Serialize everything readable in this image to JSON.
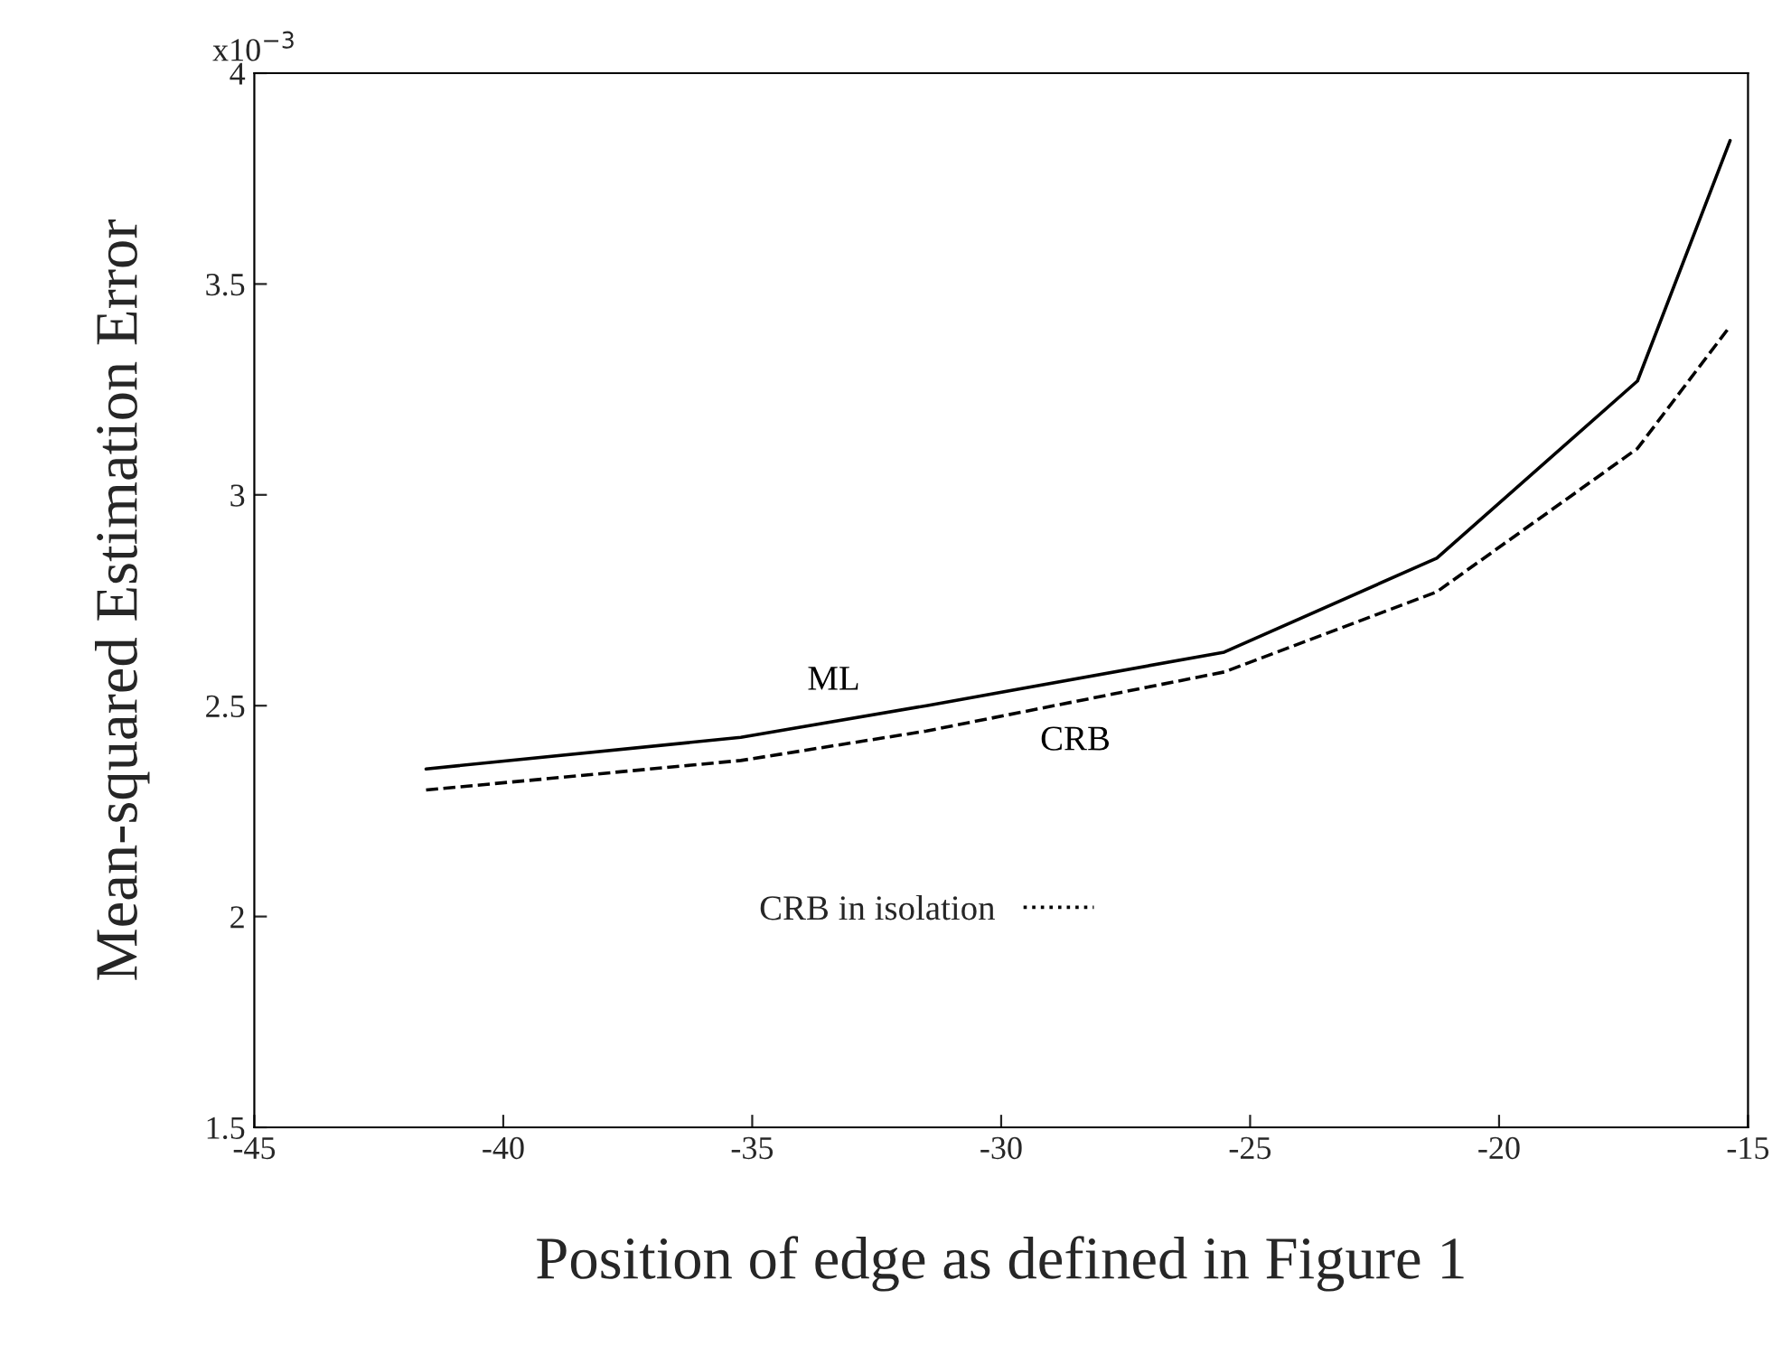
{
  "chart_data": {
    "type": "line",
    "xlabel": "Position of edge as defined in Figure 1",
    "ylabel": "Mean-squared Estimation Error",
    "x": [
      -41.55,
      -35.23,
      -31.5,
      -25.52,
      -21.25,
      -17.22,
      -15.36
    ],
    "series": [
      {
        "name": "ML",
        "color": "#000000",
        "line_style": "solid",
        "values": [
          2.35,
          2.425,
          2.5,
          2.627,
          2.85,
          3.27,
          3.84
        ]
      },
      {
        "name": "CRB",
        "color": "#000000",
        "line_style": "dashed",
        "values": [
          2.3,
          2.37,
          2.44,
          2.58,
          2.77,
          3.11,
          3.4
        ]
      },
      {
        "name": "CRB in isolation",
        "color": "#000000",
        "line_style": "dotted",
        "values": [
          null,
          null,
          null,
          null,
          null,
          null,
          null
        ]
      }
    ],
    "xlim": [
      -45,
      -15
    ],
    "xticks": [
      -45,
      -40,
      -35,
      -30,
      -25,
      -20,
      -15
    ],
    "ylim": [
      1.5,
      4
    ],
    "yticks": [
      1.5,
      2,
      2.5,
      3,
      3.5,
      4
    ],
    "annotations": [
      "x10$^{−3}$"
    ],
    "grid": false,
    "legend": "bottom",
    "marker": "none"
  }
}
